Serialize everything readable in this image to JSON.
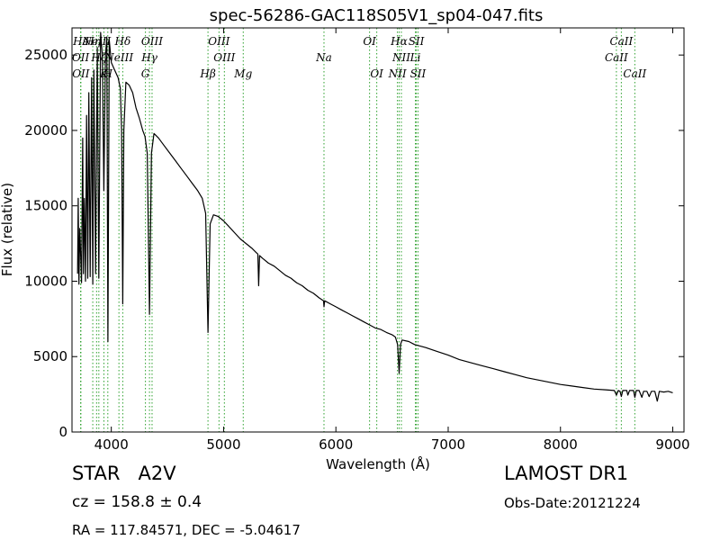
{
  "chart_data": {
    "type": "line",
    "title": "spec-56286-GAC118S05V1_sp04-047.fits",
    "xlabel": "Wavelength (Å)",
    "ylabel": "Flux (relative)",
    "xlim": [
      3650,
      9100
    ],
    "ylim": [
      0,
      26800
    ],
    "xticks": [
      4000,
      5000,
      6000,
      7000,
      8000,
      9000
    ],
    "yticks": [
      0,
      5000,
      10000,
      15000,
      20000,
      25000
    ],
    "grid": false,
    "line_color": "#000000",
    "marker_color": "#2ca02c",
    "lines": [
      {
        "label": "Hε",
        "wave": 3727,
        "row": 0
      },
      {
        "label": "OII",
        "wave": 3727,
        "row": 1
      },
      {
        "label": "OII",
        "wave": 3729,
        "row": 2
      },
      {
        "label": "Hη",
        "wave": 3835,
        "row": 0
      },
      {
        "label": "Hζ",
        "wave": 3889,
        "row": 1
      },
      {
        "label": "NeIII",
        "wave": 3869,
        "row": 0
      },
      {
        "label": "K",
        "wave": 3934,
        "row": 2
      },
      {
        "label": "H",
        "wave": 3969,
        "row": 2
      },
      {
        "label": "Hδ",
        "wave": 4102,
        "row": 0
      },
      {
        "label": "NeIII",
        "wave": 4068,
        "row": 1
      },
      {
        "label": "OIII",
        "wave": 4363,
        "row": 0
      },
      {
        "label": "Hγ",
        "wave": 4340,
        "row": 1
      },
      {
        "label": "G",
        "wave": 4304,
        "row": 2
      },
      {
        "label": "OIII",
        "wave": 4959,
        "row": 0
      },
      {
        "label": "OIII",
        "wave": 5007,
        "row": 1
      },
      {
        "label": "Hβ",
        "wave": 4861,
        "row": 2
      },
      {
        "label": "Mg",
        "wave": 5175,
        "row": 2
      },
      {
        "label": "Na",
        "wave": 5894,
        "row": 1
      },
      {
        "label": "OI",
        "wave": 6300,
        "row": 0
      },
      {
        "label": "OI",
        "wave": 6364,
        "row": 2
      },
      {
        "label": "Hα",
        "wave": 6563,
        "row": 0
      },
      {
        "label": "NII",
        "wave": 6583,
        "row": 1
      },
      {
        "label": "NII",
        "wave": 6548,
        "row": 2
      },
      {
        "label": "SII",
        "wave": 6716,
        "row": 0
      },
      {
        "label": "Li",
        "wave": 6708,
        "row": 1
      },
      {
        "label": "SII",
        "wave": 6731,
        "row": 2
      },
      {
        "label": "CaII",
        "wave": 8542,
        "row": 0
      },
      {
        "label": "CaII",
        "wave": 8498,
        "row": 1
      },
      {
        "label": "CaII",
        "wave": 8662,
        "row": 2
      }
    ],
    "spectrum": [
      [
        3700,
        10500
      ],
      [
        3705,
        15500
      ],
      [
        3712,
        9800
      ],
      [
        3720,
        13500
      ],
      [
        3735,
        9900
      ],
      [
        3745,
        19500
      ],
      [
        3752,
        10500
      ],
      [
        3760,
        15500
      ],
      [
        3770,
        10000
      ],
      [
        3780,
        21000
      ],
      [
        3790,
        10200
      ],
      [
        3800,
        22500
      ],
      [
        3812,
        10300
      ],
      [
        3825,
        23500
      ],
      [
        3835,
        9800
      ],
      [
        3845,
        24000
      ],
      [
        3860,
        10500
      ],
      [
        3875,
        25500
      ],
      [
        3889,
        10200
      ],
      [
        3905,
        26500
      ],
      [
        3920,
        25000
      ],
      [
        3934,
        16000
      ],
      [
        3948,
        25000
      ],
      [
        3960,
        26200
      ],
      [
        3970,
        6000
      ],
      [
        3982,
        26000
      ],
      [
        4000,
        24500
      ],
      [
        4030,
        24000
      ],
      [
        4060,
        23500
      ],
      [
        4080,
        22800
      ],
      [
        4092,
        20000
      ],
      [
        4102,
        8500
      ],
      [
        4112,
        20000
      ],
      [
        4130,
        23200
      ],
      [
        4160,
        23000
      ],
      [
        4190,
        22500
      ],
      [
        4220,
        21500
      ],
      [
        4250,
        20800
      ],
      [
        4280,
        20000
      ],
      [
        4300,
        19600
      ],
      [
        4320,
        18500
      ],
      [
        4340,
        7800
      ],
      [
        4358,
        18500
      ],
      [
        4380,
        19800
      ],
      [
        4420,
        19500
      ],
      [
        4470,
        19000
      ],
      [
        4520,
        18500
      ],
      [
        4570,
        18000
      ],
      [
        4620,
        17500
      ],
      [
        4670,
        17000
      ],
      [
        4720,
        16500
      ],
      [
        4770,
        16000
      ],
      [
        4810,
        15500
      ],
      [
        4840,
        14500
      ],
      [
        4861,
        6600
      ],
      [
        4880,
        13800
      ],
      [
        4910,
        14400
      ],
      [
        4950,
        14300
      ],
      [
        5000,
        14000
      ],
      [
        5050,
        13600
      ],
      [
        5100,
        13200
      ],
      [
        5150,
        12800
      ],
      [
        5200,
        12500
      ],
      [
        5250,
        12200
      ],
      [
        5290,
        11900
      ],
      [
        5305,
        11800
      ],
      [
        5312,
        9700
      ],
      [
        5320,
        11700
      ],
      [
        5350,
        11500
      ],
      [
        5400,
        11200
      ],
      [
        5450,
        11000
      ],
      [
        5500,
        10700
      ],
      [
        5550,
        10400
      ],
      [
        5600,
        10200
      ],
      [
        5650,
        9900
      ],
      [
        5700,
        9700
      ],
      [
        5750,
        9400
      ],
      [
        5800,
        9200
      ],
      [
        5850,
        8900
      ],
      [
        5890,
        8700
      ],
      [
        5894,
        8300
      ],
      [
        5900,
        8700
      ],
      [
        5950,
        8500
      ],
      [
        6000,
        8300
      ],
      [
        6050,
        8100
      ],
      [
        6100,
        7900
      ],
      [
        6150,
        7700
      ],
      [
        6200,
        7500
      ],
      [
        6250,
        7300
      ],
      [
        6300,
        7100
      ],
      [
        6350,
        6900
      ],
      [
        6400,
        6800
      ],
      [
        6450,
        6600
      ],
      [
        6500,
        6450
      ],
      [
        6530,
        6300
      ],
      [
        6550,
        5800
      ],
      [
        6563,
        3900
      ],
      [
        6575,
        5800
      ],
      [
        6590,
        6100
      ],
      [
        6650,
        6000
      ],
      [
        6700,
        5800
      ],
      [
        6800,
        5600
      ],
      [
        6900,
        5350
      ],
      [
        7000,
        5100
      ],
      [
        7100,
        4800
      ],
      [
        7200,
        4600
      ],
      [
        7300,
        4400
      ],
      [
        7400,
        4200
      ],
      [
        7500,
        4000
      ],
      [
        7600,
        3800
      ],
      [
        7700,
        3600
      ],
      [
        7800,
        3450
      ],
      [
        7900,
        3300
      ],
      [
        8000,
        3150
      ],
      [
        8100,
        3050
      ],
      [
        8200,
        2950
      ],
      [
        8300,
        2850
      ],
      [
        8400,
        2800
      ],
      [
        8480,
        2750
      ],
      [
        8498,
        2450
      ],
      [
        8515,
        2750
      ],
      [
        8530,
        2700
      ],
      [
        8542,
        2350
      ],
      [
        8555,
        2750
      ],
      [
        8590,
        2750
      ],
      [
        8600,
        2450
      ],
      [
        8615,
        2750
      ],
      [
        8650,
        2750
      ],
      [
        8662,
        2300
      ],
      [
        8675,
        2750
      ],
      [
        8700,
        2750
      ],
      [
        8725,
        2300
      ],
      [
        8740,
        2700
      ],
      [
        8770,
        2700
      ],
      [
        8790,
        2350
      ],
      [
        8810,
        2700
      ],
      [
        8840,
        2700
      ],
      [
        8862,
        2050
      ],
      [
        8880,
        2700
      ],
      [
        8920,
        2650
      ],
      [
        8960,
        2700
      ],
      [
        9000,
        2600
      ]
    ]
  },
  "info": {
    "object_type": "STAR",
    "subclass": "A2V",
    "cz_text": "cz = 158.8 ± 0.4",
    "radec_text": "RA = 117.84571, DEC = -5.04617",
    "survey": "LAMOST DR1",
    "obs_date": "Obs-Date:20121224"
  }
}
